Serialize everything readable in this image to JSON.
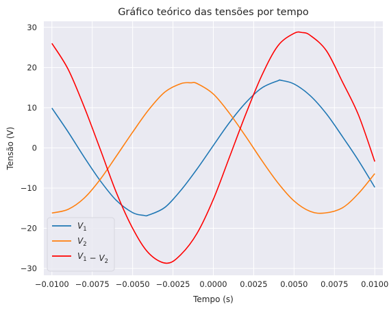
{
  "chart_data": {
    "type": "line",
    "title": "Gráfico teórico das tensões por tempo",
    "xlabel": "Tempo (s)",
    "ylabel": "Tensão (V)",
    "xlim": [
      -0.0105,
      0.0105
    ],
    "ylim": [
      -31.7,
      31.5
    ],
    "xticks": [
      -0.01,
      -0.0075,
      -0.005,
      -0.0025,
      0,
      0.0025,
      0.005,
      0.0075,
      0.01
    ],
    "xtick_labels": [
      "−0.0100",
      "−0.0075",
      "−0.0050",
      "−0.0025",
      "0.0000",
      "0.0025",
      "0.0050",
      "0.0075",
      "0.0100"
    ],
    "yticks": [
      -30,
      -20,
      -10,
      0,
      10,
      20,
      30
    ],
    "ytick_labels": [
      "−30",
      "−20",
      "−10",
      "0",
      "10",
      "20",
      "30"
    ],
    "grid": true,
    "legend_position": "lower-left",
    "series": [
      {
        "name": "V1",
        "color": "#1f77b4",
        "x": [
          -0.01,
          -0.009,
          -0.008,
          -0.007,
          -0.006,
          -0.005,
          -0.0043,
          -0.004,
          -0.003,
          -0.002,
          -0.001,
          0,
          0.001,
          0.002,
          0.003,
          0.004,
          0.0042,
          0.005,
          0.006,
          0.007,
          0.008,
          0.009,
          0.01
        ],
        "y": [
          9.9,
          4.0,
          -2.3,
          -8.2,
          -13.1,
          -16.1,
          -16.8,
          -16.7,
          -14.8,
          -10.5,
          -5.2,
          0.6,
          6.3,
          11.2,
          14.9,
          16.7,
          16.8,
          15.9,
          13.0,
          8.5,
          2.8,
          -3.2,
          -9.8
        ]
      },
      {
        "name": "V2",
        "color": "#ff7f0e",
        "x": [
          -0.01,
          -0.009,
          -0.008,
          -0.007,
          -0.006,
          -0.005,
          -0.004,
          -0.003,
          -0.002,
          -0.0014,
          -0.001,
          0,
          0.001,
          0.002,
          0.003,
          0.004,
          0.005,
          0.006,
          0.0069,
          0.008,
          0.009,
          0.01
        ],
        "y": [
          -16.2,
          -15.3,
          -12.5,
          -7.8,
          -2.0,
          3.9,
          9.5,
          13.9,
          16.0,
          16.2,
          16.0,
          13.4,
          8.6,
          2.9,
          -3.1,
          -8.7,
          -13.2,
          -15.8,
          -16.2,
          -14.9,
          -11.3,
          -6.4
        ]
      },
      {
        "name": "V1 − V2",
        "color": "#ff0000",
        "x": [
          -0.01,
          -0.009,
          -0.008,
          -0.007,
          -0.006,
          -0.005,
          -0.004,
          -0.0029,
          -0.002,
          -0.001,
          0,
          0.001,
          0.002,
          0.003,
          0.004,
          0.005,
          0.0055,
          0.006,
          0.007,
          0.008,
          0.009,
          0.01
        ],
        "y": [
          26.0,
          19.6,
          10.2,
          -0.4,
          -11.2,
          -20.0,
          -26.2,
          -28.7,
          -26.5,
          -21.2,
          -12.8,
          -2.3,
          8.3,
          18.0,
          25.4,
          28.5,
          28.7,
          28.0,
          24.2,
          16.4,
          8.1,
          -3.4
        ]
      }
    ]
  }
}
